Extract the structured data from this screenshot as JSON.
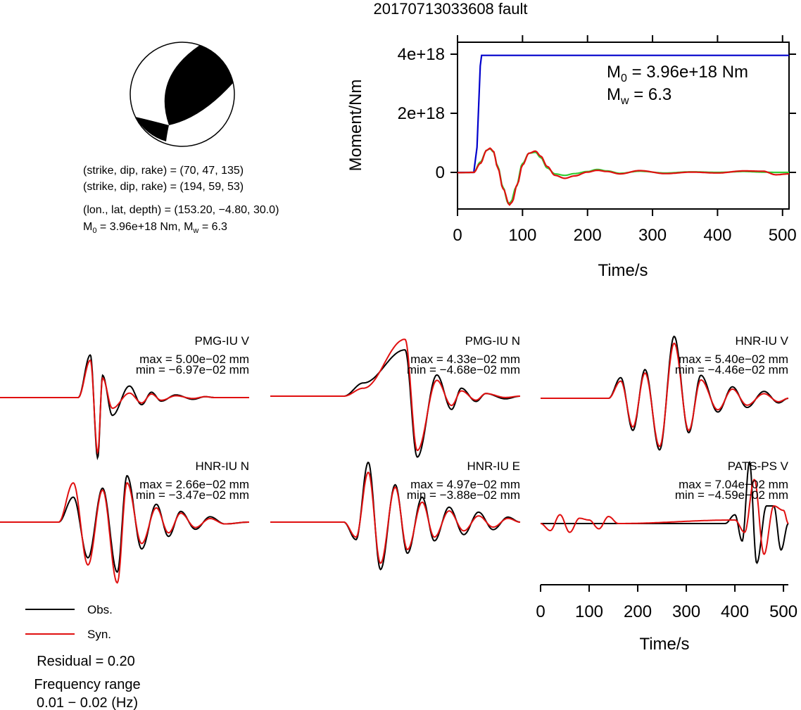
{
  "title": "20170713033608 fault",
  "colors": {
    "obs": "#000000",
    "syn": "#e01010",
    "moment": "#0000cc",
    "stf_green": "#33cc33"
  },
  "focal": {
    "lines": [
      "(strike, dip, rake) = (70, 47, 135)",
      "(strike, dip, rake) = (194, 59, 53)",
      "(lon., lat, depth) = (153.20, −4.80, 30.0)"
    ],
    "m0_prefix": "M",
    "m0_sub": "0",
    "m0_tail": " = 3.96e+18 Nm, M",
    "mw_sub": "w",
    "mw_tail": " = 6.3"
  },
  "moment_plot": {
    "ylabel": "Moment/Nm",
    "xlabel": "Time/s",
    "yticks": [
      "4e+18",
      "2e+18",
      "0"
    ],
    "xticks": [
      "0",
      "100",
      "200",
      "300",
      "400",
      "500"
    ],
    "ann_m0_prefix": "M",
    "ann_m0_sub": "0",
    "ann_m0_tail": " = 3.96e+18 Nm",
    "ann_mw_prefix": "M",
    "ann_mw_sub": "w",
    "ann_mw_tail": " = 6.3"
  },
  "waveform_axis": {
    "xlabel": "Time/s",
    "xticks": [
      "0",
      "100",
      "200",
      "300",
      "400",
      "500"
    ]
  },
  "legend": {
    "obs": "Obs.",
    "syn": "Syn."
  },
  "residual": "Residual = 0.20",
  "freq_label": "Frequency range",
  "freq_value": "0.01 − 0.02 (Hz)",
  "chart_data": [
    {
      "type": "line",
      "title": "",
      "xlabel": "Time/s",
      "ylabel": "Moment/Nm",
      "xlim": [
        0,
        510
      ],
      "ylim": [
        -6.5e+17,
        4.3e+18
      ],
      "grid": false,
      "series": [
        {
          "x": [
            0,
            25,
            30,
            35,
            37,
            510
          ],
          "y": [
            0,
            0,
            8.5e+17,
            3.6e+18,
            3.96e+18,
            3.96e+18
          ]
        },
        {
          "x": [
            0,
            25,
            35,
            45,
            50,
            55,
            62,
            70,
            78,
            82,
            90,
            100,
            110,
            120,
            128,
            138,
            150,
            165,
            180,
            200,
            215,
            230,
            250,
            280,
            320,
            360,
            400,
            440,
            470,
            490,
            510
          ],
          "y": [
            -1e+16,
            0,
            3.5e+17,
            7.5e+17,
            8e+17,
            7e+17,
            2e+17,
            -5e+17,
            -1.05e+18,
            -1e+18,
            -5e+17,
            3e+17,
            6.5e+17,
            6.8e+17,
            5e+17,
            1.5e+17,
            -5e+16,
            -1e+17,
            -4e+16,
            3e+16,
            1e+17,
            5e+16,
            -3e+16,
            4e+16,
            -2e+16,
            2e+16,
            0,
            3e+16,
            1e+16,
            0,
            0
          ]
        },
        {
          "x": [
            0,
            25,
            35,
            45,
            50,
            55,
            62,
            70,
            80,
            84,
            92,
            100,
            110,
            120,
            128,
            138,
            150,
            165,
            180,
            200,
            215,
            230,
            250,
            280,
            320,
            360,
            400,
            440,
            470,
            490,
            510
          ],
          "y": [
            -1e+16,
            0,
            3e+17,
            7.5e+17,
            8.2e+17,
            7.2e+17,
            1.5e+17,
            -5.5e+17,
            -1.1e+18,
            -1e+18,
            -4e+17,
            2.5e+17,
            6.5e+17,
            7.2e+17,
            5.5e+17,
            2e+17,
            -1e+17,
            -2e+17,
            -1.2e+17,
            1e+16,
            7e+16,
            3e+16,
            -5e+16,
            6e+16,
            -4e+16,
            1e+16,
            -2e+16,
            5e+16,
            4e+16,
            -8e+16,
            -5e+16
          ]
        }
      ]
    },
    {
      "type": "line",
      "title": "PMG-IU V",
      "annotations": [
        "max = 5.00e−02 mm",
        "min = −6.97e−02 mm"
      ],
      "xlim": [
        0,
        510
      ],
      "ylim": [
        -0.0697,
        0.05
      ],
      "series": [
        {
          "name": "Obs.",
          "x": [
            0,
            160,
            185,
            200,
            210,
            230,
            265,
            290,
            310,
            330,
            360,
            395,
            420,
            440,
            470,
            510
          ],
          "y": [
            0,
            0,
            0.048,
            -0.068,
            0.025,
            -0.02,
            0.013,
            -0.008,
            0.006,
            -0.004,
            0.003,
            -0.002,
            0.001,
            0,
            0,
            0
          ]
        },
        {
          "name": "Syn.",
          "x": [
            0,
            160,
            185,
            200,
            210,
            230,
            265,
            290,
            310,
            330,
            360,
            395,
            420,
            440,
            470,
            510
          ],
          "y": [
            0,
            0,
            0.042,
            -0.062,
            0.022,
            -0.012,
            0.005,
            -0.006,
            0.004,
            -0.003,
            0.002,
            -0.001,
            0.001,
            0,
            0,
            0
          ]
        }
      ]
    },
    {
      "type": "line",
      "title": "PMG-IU N",
      "annotations": [
        "max = 4.33e−02 mm",
        "min = −4.68e−02 mm"
      ],
      "xlim": [
        0,
        510
      ],
      "ylim": [
        -0.0468,
        0.0433
      ],
      "series": [
        {
          "name": "Obs.",
          "x": [
            0,
            150,
            190,
            275,
            300,
            340,
            370,
            390,
            420,
            440,
            480,
            510
          ],
          "y": [
            0,
            0,
            0.01,
            0.035,
            -0.046,
            0.016,
            -0.01,
            0.006,
            -0.004,
            0.002,
            -0.002,
            0
          ]
        },
        {
          "name": "Syn.",
          "x": [
            0,
            150,
            190,
            275,
            300,
            340,
            370,
            390,
            420,
            440,
            480,
            510
          ],
          "y": [
            0,
            0,
            0.006,
            0.043,
            -0.041,
            0.012,
            -0.007,
            0.004,
            -0.003,
            0.002,
            -0.001,
            0
          ]
        }
      ]
    },
    {
      "type": "line",
      "title": "HNR-IU V",
      "annotations": [
        "max = 5.40e−02 mm",
        "min = −4.46e−02 mm"
      ],
      "xlim": [
        0,
        510
      ],
      "ylim": [
        -0.0446,
        0.054
      ],
      "series": [
        {
          "name": "Obs.",
          "x": [
            0,
            140,
            165,
            190,
            215,
            245,
            275,
            305,
            330,
            365,
            395,
            425,
            460,
            490,
            510
          ],
          "y": [
            0,
            0,
            0.018,
            -0.028,
            0.025,
            -0.045,
            0.054,
            -0.03,
            0.02,
            -0.012,
            0.01,
            -0.008,
            0.006,
            -0.004,
            0
          ]
        },
        {
          "name": "Syn.",
          "x": [
            0,
            140,
            165,
            190,
            215,
            245,
            275,
            305,
            330,
            365,
            395,
            425,
            460,
            490,
            510
          ],
          "y": [
            0,
            0,
            0.015,
            -0.025,
            0.022,
            -0.042,
            0.048,
            -0.028,
            0.016,
            -0.01,
            0.008,
            -0.006,
            0.004,
            -0.003,
            0
          ]
        }
      ]
    },
    {
      "type": "line",
      "title": "HNR-IU N",
      "annotations": [
        "max = 2.66e−02 mm",
        "min = −3.47e−02 mm"
      ],
      "xlim": [
        0,
        510
      ],
      "ylim": [
        -0.0347,
        0.0266
      ],
      "series": [
        {
          "name": "Obs.",
          "x": [
            0,
            120,
            150,
            180,
            210,
            240,
            260,
            290,
            320,
            345,
            370,
            400,
            430,
            460,
            510
          ],
          "y": [
            0,
            0,
            0.014,
            -0.02,
            0.019,
            -0.028,
            0.026,
            -0.015,
            0.01,
            -0.008,
            0.006,
            -0.004,
            0.003,
            -0.001,
            0
          ]
        },
        {
          "name": "Syn.",
          "x": [
            0,
            120,
            150,
            180,
            210,
            240,
            260,
            290,
            320,
            345,
            370,
            400,
            430,
            460,
            510
          ],
          "y": [
            0,
            0,
            0.022,
            -0.024,
            0.018,
            -0.034,
            0.022,
            -0.012,
            0.008,
            -0.006,
            0.005,
            -0.003,
            0.002,
            -0.001,
            0
          ]
        }
      ]
    },
    {
      "type": "line",
      "title": "HNR-IU E",
      "annotations": [
        "max = 4.97e−02 mm",
        "min = −3.88e−02 mm"
      ],
      "xlim": [
        0,
        510
      ],
      "ylim": [
        -0.0388,
        0.0497
      ],
      "series": [
        {
          "name": "Obs.",
          "x": [
            0,
            150,
            175,
            200,
            225,
            255,
            280,
            310,
            335,
            365,
            395,
            425,
            455,
            485,
            510
          ],
          "y": [
            0,
            0,
            -0.014,
            0.048,
            -0.038,
            0.03,
            -0.025,
            0.02,
            -0.015,
            0.012,
            -0.01,
            0.008,
            -0.006,
            0.004,
            0
          ]
        },
        {
          "name": "Syn.",
          "x": [
            0,
            150,
            175,
            200,
            225,
            255,
            280,
            310,
            335,
            365,
            395,
            425,
            455,
            485,
            510
          ],
          "y": [
            0,
            0,
            -0.012,
            0.04,
            -0.033,
            0.028,
            -0.022,
            0.016,
            -0.012,
            0.009,
            -0.007,
            0.005,
            -0.004,
            0.003,
            0
          ]
        }
      ]
    },
    {
      "type": "line",
      "title": "PATS-PS V",
      "annotations": [
        "max = 7.04e−02 mm",
        "min = −4.59e−02 mm"
      ],
      "xlabel": "Time/s",
      "xlim": [
        0,
        510
      ],
      "ylim": [
        -0.0459,
        0.0704
      ],
      "series": [
        {
          "name": "Obs.",
          "x": [
            0,
            380,
            400,
            415,
            430,
            445,
            465,
            480,
            495,
            510
          ],
          "y": [
            0,
            0,
            0.01,
            -0.02,
            0.07,
            -0.045,
            0.02,
            0.02,
            -0.03,
            0
          ]
        },
        {
          "name": "Syn.",
          "x": [
            0,
            20,
            40,
            60,
            80,
            100,
            120,
            140,
            160,
            400,
            420,
            440,
            460,
            480,
            500,
            510
          ],
          "y": [
            0,
            -0.008,
            0.01,
            -0.01,
            0.006,
            0.004,
            -0.006,
            0.008,
            0,
            0.004,
            -0.01,
            0.05,
            -0.035,
            0.02,
            0.015,
            0
          ]
        }
      ]
    }
  ]
}
